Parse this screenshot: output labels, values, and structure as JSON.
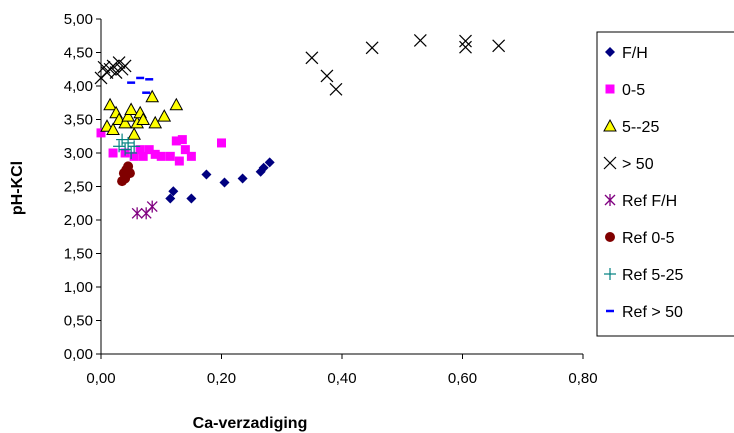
{
  "chart_data": {
    "type": "scatter",
    "title": "",
    "xlabel": "Ca-verzadiging",
    "ylabel": "pH-KCl",
    "xlim": [
      0,
      0.8
    ],
    "ylim": [
      0,
      5
    ],
    "x_ticks": [
      "0,00",
      "0,20",
      "0,40",
      "0,60",
      "0,80"
    ],
    "y_ticks": [
      "0,00",
      "0,50",
      "1,00",
      "1,50",
      "2,00",
      "2,50",
      "3,00",
      "3,50",
      "4,00",
      "4,50",
      "5,00"
    ],
    "grid": false,
    "legend_position": "right",
    "series": [
      {
        "name": "F/H",
        "marker": "diamond",
        "color": "#000080",
        "points": [
          [
            0.115,
            2.32
          ],
          [
            0.12,
            2.43
          ],
          [
            0.15,
            2.32
          ],
          [
            0.175,
            2.68
          ],
          [
            0.205,
            2.56
          ],
          [
            0.235,
            2.62
          ],
          [
            0.265,
            2.72
          ],
          [
            0.27,
            2.78
          ],
          [
            0.28,
            2.86
          ]
        ]
      },
      {
        "name": "0-5",
        "marker": "square",
        "color": "#ff00ff",
        "points": [
          [
            0.0,
            3.3
          ],
          [
            0.02,
            3.0
          ],
          [
            0.04,
            3.0
          ],
          [
            0.055,
            2.95
          ],
          [
            0.065,
            3.05
          ],
          [
            0.07,
            2.95
          ],
          [
            0.08,
            3.05
          ],
          [
            0.09,
            2.98
          ],
          [
            0.1,
            2.95
          ],
          [
            0.115,
            2.95
          ],
          [
            0.125,
            3.18
          ],
          [
            0.13,
            2.88
          ],
          [
            0.135,
            3.2
          ],
          [
            0.14,
            3.05
          ],
          [
            0.15,
            2.95
          ],
          [
            0.2,
            3.15
          ]
        ]
      },
      {
        "name": "5--25",
        "marker": "triangle",
        "color": "#ffff00",
        "points": [
          [
            0.01,
            3.4
          ],
          [
            0.015,
            3.72
          ],
          [
            0.02,
            3.35
          ],
          [
            0.025,
            3.6
          ],
          [
            0.03,
            3.5
          ],
          [
            0.04,
            3.45
          ],
          [
            0.045,
            3.55
          ],
          [
            0.05,
            3.65
          ],
          [
            0.055,
            3.28
          ],
          [
            0.06,
            3.45
          ],
          [
            0.065,
            3.6
          ],
          [
            0.07,
            3.5
          ],
          [
            0.085,
            3.84
          ],
          [
            0.09,
            3.45
          ],
          [
            0.105,
            3.55
          ],
          [
            0.125,
            3.72
          ]
        ]
      },
      {
        "name": "> 50",
        "marker": "x",
        "color": "#000000",
        "points": [
          [
            0.0,
            4.12
          ],
          [
            0.005,
            4.28
          ],
          [
            0.01,
            4.2
          ],
          [
            0.015,
            4.25
          ],
          [
            0.02,
            4.3
          ],
          [
            0.025,
            4.2
          ],
          [
            0.03,
            4.35
          ],
          [
            0.035,
            4.25
          ],
          [
            0.04,
            4.3
          ],
          [
            0.35,
            4.42
          ],
          [
            0.375,
            4.15
          ],
          [
            0.39,
            3.95
          ],
          [
            0.45,
            4.57
          ],
          [
            0.53,
            4.68
          ],
          [
            0.605,
            4.58
          ],
          [
            0.605,
            4.67
          ],
          [
            0.66,
            4.6
          ]
        ]
      },
      {
        "name": "Ref F/H",
        "marker": "asterisk",
        "color": "#800080",
        "points": [
          [
            0.06,
            2.1
          ],
          [
            0.075,
            2.1
          ],
          [
            0.085,
            2.2
          ]
        ]
      },
      {
        "name": "Ref 0-5",
        "marker": "circle",
        "color": "#800000",
        "points": [
          [
            0.035,
            2.58
          ],
          [
            0.038,
            2.7
          ],
          [
            0.04,
            2.62
          ],
          [
            0.042,
            2.75
          ],
          [
            0.045,
            2.8
          ],
          [
            0.048,
            2.7
          ]
        ]
      },
      {
        "name": "Ref 5-25",
        "marker": "plus",
        "color": "#008080",
        "points": [
          [
            0.03,
            3.1
          ],
          [
            0.035,
            3.2
          ],
          [
            0.04,
            3.05
          ],
          [
            0.045,
            3.15
          ],
          [
            0.05,
            3.0
          ],
          [
            0.055,
            3.1
          ]
        ]
      },
      {
        "name": "Ref > 50",
        "marker": "dash",
        "color": "#0000ff",
        "points": [
          [
            0.05,
            4.05
          ],
          [
            0.065,
            4.12
          ],
          [
            0.08,
            4.1
          ],
          [
            0.075,
            3.9
          ]
        ]
      }
    ]
  }
}
